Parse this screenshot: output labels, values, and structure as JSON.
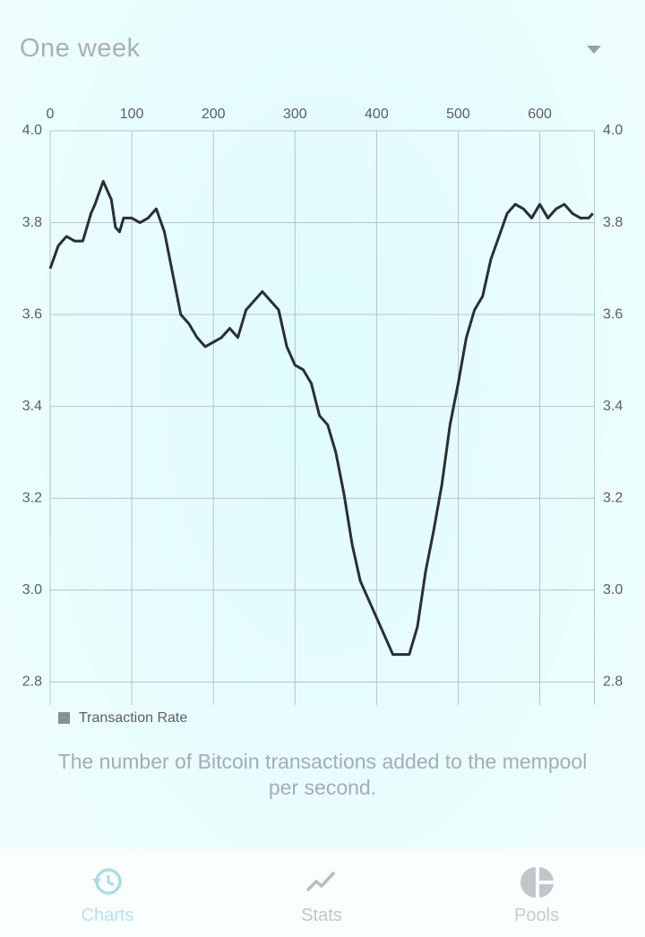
{
  "header": {
    "period": "One week"
  },
  "chart_data": {
    "type": "line",
    "x": [
      0,
      10,
      20,
      30,
      40,
      50,
      55,
      65,
      70,
      75,
      80,
      85,
      90,
      100,
      110,
      120,
      130,
      140,
      150,
      160,
      170,
      180,
      190,
      200,
      210,
      220,
      230,
      240,
      250,
      260,
      270,
      280,
      290,
      300,
      310,
      320,
      330,
      340,
      350,
      360,
      370,
      380,
      390,
      400,
      410,
      420,
      430,
      440,
      450,
      460,
      470,
      480,
      490,
      500,
      510,
      520,
      530,
      540,
      550,
      560,
      570,
      580,
      590,
      600,
      610,
      620,
      630,
      640,
      650,
      660,
      665
    ],
    "series": [
      {
        "name": "Transaction Rate",
        "color": "#2a2f33",
        "values": [
          3.7,
          3.75,
          3.77,
          3.76,
          3.76,
          3.82,
          3.84,
          3.89,
          3.87,
          3.85,
          3.79,
          3.78,
          3.81,
          3.81,
          3.8,
          3.81,
          3.83,
          3.78,
          3.69,
          3.6,
          3.58,
          3.55,
          3.53,
          3.54,
          3.55,
          3.57,
          3.55,
          3.61,
          3.63,
          3.65,
          3.63,
          3.61,
          3.53,
          3.49,
          3.48,
          3.45,
          3.38,
          3.36,
          3.3,
          3.21,
          3.1,
          3.02,
          2.98,
          2.94,
          2.9,
          2.86,
          2.86,
          2.86,
          2.92,
          3.04,
          3.13,
          3.23,
          3.36,
          3.45,
          3.55,
          3.61,
          3.64,
          3.72,
          3.77,
          3.82,
          3.84,
          3.83,
          3.81,
          3.84,
          3.81,
          3.83,
          3.84,
          3.82,
          3.81,
          3.81,
          3.82
        ]
      }
    ],
    "xlim": [
      0,
      667
    ],
    "xticks": [
      0,
      100,
      200,
      300,
      400,
      500,
      600
    ],
    "ylim": [
      2.75,
      4.0
    ],
    "yticks": [
      {
        "value": 2.8,
        "label": "2.8"
      },
      {
        "value": 3,
        "label": "3.0"
      },
      {
        "value": 3.2,
        "label": "3.2"
      },
      {
        "value": 3.4,
        "label": "3.4"
      },
      {
        "value": 3.6,
        "label": "3.6"
      },
      {
        "value": 3.8,
        "label": "3.8"
      },
      {
        "value": 4,
        "label": "4.0"
      }
    ],
    "grid": true
  },
  "caption": "The number of Bitcoin transactions added to the mempool per second.",
  "nav": [
    "Charts",
    "Stats",
    "Pools"
  ]
}
